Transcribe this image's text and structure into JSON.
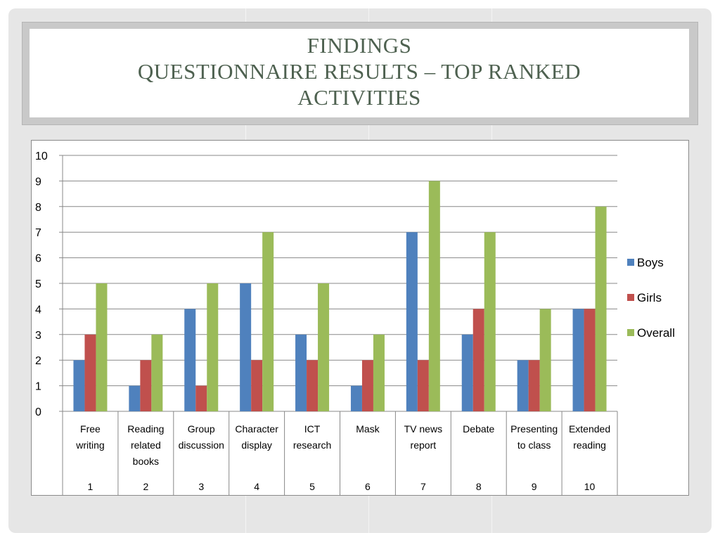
{
  "slide": {
    "title_line1": "FINDINGS",
    "title_line2": "QUESTIONNAIRE RESULTS – TOP RANKED",
    "title_line3": "ACTIVITIES"
  },
  "chart_data": {
    "type": "bar",
    "categories": [
      [
        "Free",
        "writing"
      ],
      [
        "Reading",
        "related",
        "books"
      ],
      [
        "Group",
        "discussion"
      ],
      [
        "Character",
        "display"
      ],
      [
        "ICT",
        "research"
      ],
      [
        "Mask"
      ],
      [
        "TV news",
        "report"
      ],
      [
        "Debate"
      ],
      [
        "Presenting",
        "to class"
      ],
      [
        "Extended",
        "reading"
      ]
    ],
    "ranks": [
      "1",
      "2",
      "3",
      "4",
      "5",
      "6",
      "7",
      "8",
      "9",
      "10"
    ],
    "series": [
      {
        "name": "Boys",
        "color": "#4f81bd",
        "values": [
          2,
          1,
          4,
          5,
          3,
          1,
          7,
          3,
          2,
          4
        ]
      },
      {
        "name": "Girls",
        "color": "#c0504d",
        "values": [
          3,
          2,
          1,
          2,
          2,
          2,
          2,
          4,
          2,
          4
        ]
      },
      {
        "name": "Overall",
        "color": "#9bbb59",
        "values": [
          5,
          3,
          5,
          7,
          5,
          3,
          9,
          7,
          4,
          8
        ]
      }
    ],
    "ylim": [
      0,
      10
    ],
    "yticks": [
      0,
      1,
      2,
      3,
      4,
      5,
      6,
      7,
      8,
      9,
      10
    ],
    "grid": true,
    "legend_position": "right"
  }
}
